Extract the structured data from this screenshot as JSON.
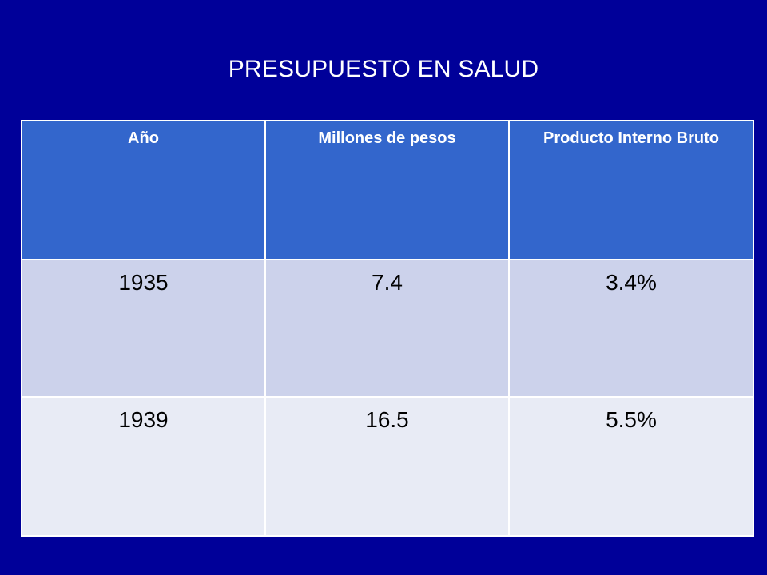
{
  "slide": {
    "title": "PRESUPUESTO EN SALUD"
  },
  "table": {
    "headers": [
      "Año",
      "Millones de pesos",
      "Producto Interno Bruto"
    ],
    "rows": [
      [
        "1935",
        "7.4",
        "3.4%"
      ],
      [
        "1939",
        "16.5",
        "5.5%"
      ]
    ]
  },
  "colors": {
    "background": "#000099",
    "header_fill": "#3366cc",
    "row_odd_fill": "#ccd2eb",
    "row_even_fill": "#e8ebf5",
    "border": "#ffffff"
  }
}
